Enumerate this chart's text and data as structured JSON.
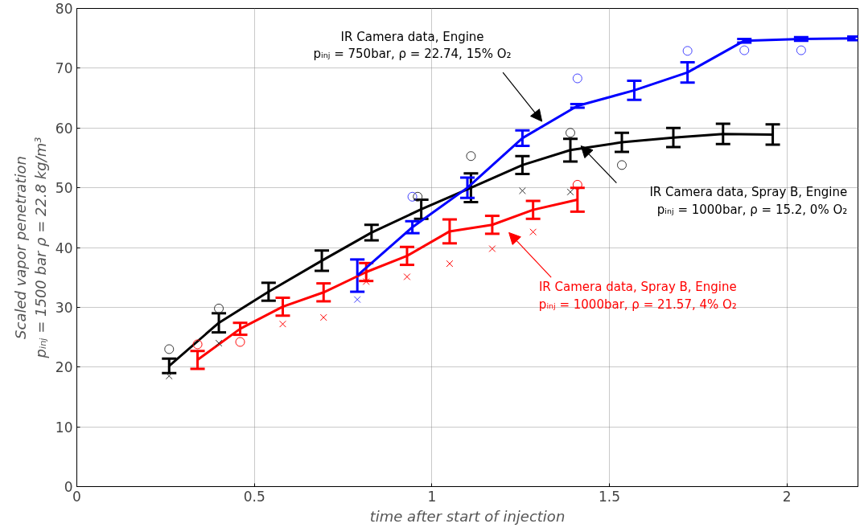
{
  "chart_data": {
    "type": "line",
    "xlabel": "time after start of injection",
    "ylabel": "Scaled vapor penetration\npᵢₙⱼ = 1500 bar ρ = 22.8 kg/m³",
    "xlim": [
      0,
      2.2
    ],
    "ylim": [
      0,
      80
    ],
    "xticks": [
      0,
      0.5,
      1,
      1.5,
      2
    ],
    "yticks": [
      0,
      10,
      20,
      30,
      40,
      50,
      60,
      70,
      80
    ],
    "grid": true,
    "marker": "none",
    "line_style": "solid",
    "series": [
      {
        "color": "#000000",
        "x": [
          0.26,
          0.4,
          0.54,
          0.69,
          0.83,
          0.97,
          1.11,
          1.255,
          1.39,
          1.535,
          1.68,
          1.82,
          1.96
        ],
        "values": [
          20.2,
          27.4,
          32.6,
          37.8,
          42.5,
          46.4,
          50.0,
          53.8,
          56.3,
          57.6,
          58.4,
          59.0,
          58.9
        ],
        "errors": [
          1.2,
          1.6,
          1.5,
          1.7,
          1.3,
          1.6,
          2.4,
          1.5,
          1.9,
          1.6,
          1.6,
          1.7,
          1.7
        ]
      },
      {
        "color": "#ff0000",
        "x": [
          0.34,
          0.46,
          0.58,
          0.695,
          0.815,
          0.93,
          1.05,
          1.17,
          1.285,
          1.41
        ],
        "values": [
          21.2,
          26.4,
          30.1,
          32.5,
          35.9,
          38.6,
          42.7,
          43.8,
          46.3,
          48.0
        ],
        "errors": [
          1.5,
          1.0,
          1.5,
          1.5,
          1.5,
          1.5,
          2.0,
          1.5,
          1.5,
          2.0
        ]
      },
      {
        "color": "#0000ff",
        "x": [
          0.79,
          0.945,
          1.1,
          1.255,
          1.41,
          1.57,
          1.72,
          1.88,
          2.04,
          2.19
        ],
        "values": [
          35.3,
          43.4,
          50.0,
          58.3,
          63.7,
          66.3,
          69.3,
          74.6,
          74.9,
          75.0
        ],
        "errors": [
          2.7,
          1.0,
          1.7,
          1.3,
          0.3,
          1.6,
          1.7,
          0.3,
          0.3,
          0.3
        ]
      },
      {
        "type": "scatter",
        "marker": "circle",
        "color": "#333333",
        "x": [
          0.26,
          0.4,
          0.96,
          1.11,
          1.39,
          1.535
        ],
        "values": [
          23.0,
          29.8,
          48.5,
          55.3,
          59.2,
          53.8
        ]
      },
      {
        "type": "scatter",
        "marker": "cross",
        "color": "#333333",
        "x": [
          0.26,
          0.4,
          1.255,
          1.39
        ],
        "values": [
          18.5,
          24.0,
          49.5,
          49.3
        ]
      },
      {
        "type": "scatter",
        "marker": "circle",
        "color": "#ff0000",
        "x": [
          0.34,
          0.46,
          1.41
        ],
        "values": [
          23.8,
          24.2,
          50.5
        ]
      },
      {
        "type": "scatter",
        "marker": "cross",
        "color": "#ff0000",
        "x": [
          0.58,
          0.695,
          0.815,
          0.93,
          1.05,
          1.17,
          1.285
        ],
        "values": [
          27.2,
          28.3,
          34.3,
          35.1,
          37.3,
          39.8,
          42.6
        ]
      },
      {
        "type": "scatter",
        "marker": "circle",
        "color": "#4040ff",
        "x": [
          0.945,
          1.41,
          1.72,
          1.88,
          2.04
        ],
        "values": [
          48.5,
          68.3,
          72.9,
          73.0,
          73.0
        ]
      },
      {
        "type": "scatter",
        "marker": "cross",
        "color": "#4040ff",
        "x": [
          0.79
        ],
        "values": [
          31.3
        ]
      }
    ],
    "annotations": [
      "IR Camera data, Engine\npᵢₙⱼ = 750bar, ρ = 22.74, 15% O₂",
      "IR Camera data, Spray B, Engine\npᵢₙⱼ = 1000bar, ρ = 15.2, 0% O₂",
      "IR Camera data, Spray B, Engine\npᵢₙⱼ = 1000bar, ρ = 21.57, 4% O₂"
    ]
  }
}
